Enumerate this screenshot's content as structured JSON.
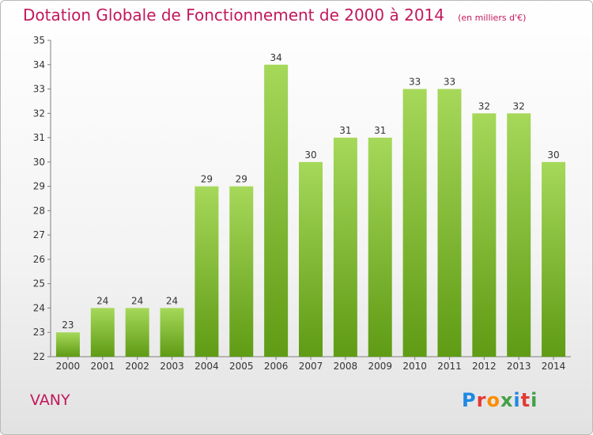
{
  "header": {
    "title": "Dotation Globale de Fonctionnement de 2000 à 2014",
    "unit": "(en milliers d'€)"
  },
  "commune": "VANY",
  "brand": {
    "text": "Proxiti",
    "colors": [
      "#1e88e5",
      "#e53935",
      "#fb8c00",
      "#43a047",
      "#1e88e5",
      "#e53935",
      "#43a047"
    ]
  },
  "colors": {
    "bar_light": "#a6d85a",
    "bar_dark": "#5f9b14",
    "title": "#c2185b"
  },
  "chart_data": {
    "type": "bar",
    "title": "Dotation Globale de Fonctionnement de 2000 à 2014",
    "xlabel": "",
    "ylabel": "",
    "categories": [
      "2000",
      "2001",
      "2002",
      "2003",
      "2004",
      "2005",
      "2006",
      "2007",
      "2008",
      "2009",
      "2010",
      "2011",
      "2012",
      "2013",
      "2014"
    ],
    "values": [
      23,
      24,
      24,
      24,
      29,
      29,
      34,
      30,
      31,
      31,
      33,
      33,
      32,
      32,
      30
    ],
    "ylim": [
      22,
      35
    ],
    "yticks": [
      22,
      23,
      24,
      25,
      26,
      27,
      28,
      29,
      30,
      31,
      32,
      33,
      34,
      35
    ],
    "grid": false,
    "data_labels": true
  }
}
